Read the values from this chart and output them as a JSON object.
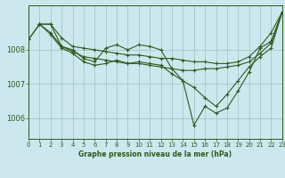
{
  "background_color": "#cce8ee",
  "grid_color": "#aacccc",
  "line_color": "#2d5a1b",
  "title": "Graphe pression niveau de la mer (hPa)",
  "xlim": [
    0,
    23
  ],
  "ylim": [
    1005.4,
    1009.3
  ],
  "yticks": [
    1006,
    1007,
    1008
  ],
  "xticks": [
    0,
    1,
    2,
    3,
    4,
    5,
    6,
    7,
    8,
    9,
    10,
    11,
    12,
    13,
    14,
    15,
    16,
    17,
    18,
    19,
    20,
    21,
    22,
    23
  ],
  "series": [
    {
      "x": [
        0,
        1,
        2,
        3,
        4,
        5,
        6,
        7,
        8,
        9,
        10,
        11,
        12,
        13,
        14,
        15,
        16,
        17,
        18,
        19,
        20,
        21,
        22,
        23
      ],
      "y": [
        1008.3,
        1008.75,
        1008.75,
        1008.35,
        1008.1,
        1008.05,
        1008.0,
        1007.95,
        1007.9,
        1007.85,
        1007.85,
        1007.8,
        1007.75,
        1007.75,
        1007.7,
        1007.65,
        1007.65,
        1007.6,
        1007.6,
        1007.65,
        1007.8,
        1008.1,
        1008.5,
        1009.1
      ]
    },
    {
      "x": [
        0,
        1,
        2,
        3,
        4,
        5,
        6,
        7,
        8,
        9,
        10,
        11,
        12,
        13,
        14,
        15,
        16,
        17,
        18,
        19,
        20,
        21,
        22,
        23
      ],
      "y": [
        1008.3,
        1008.75,
        1008.75,
        1008.1,
        1007.95,
        1007.8,
        1007.75,
        1007.7,
        1007.65,
        1007.6,
        1007.6,
        1007.55,
        1007.5,
        1007.45,
        1007.4,
        1007.4,
        1007.45,
        1007.45,
        1007.5,
        1007.55,
        1007.65,
        1007.9,
        1008.2,
        1009.1
      ]
    },
    {
      "x": [
        1,
        2,
        3,
        4,
        5,
        6,
        7,
        8,
        9,
        10,
        11,
        12,
        13,
        14,
        15,
        16,
        17,
        18,
        19,
        20,
        21,
        22,
        23
      ],
      "y": [
        1008.75,
        1008.5,
        1008.1,
        1008.0,
        1007.75,
        1007.65,
        1008.05,
        1008.15,
        1008.0,
        1008.15,
        1008.1,
        1008.0,
        1007.45,
        1007.1,
        1005.8,
        1006.35,
        1006.15,
        1006.3,
        1006.8,
        1007.35,
        1008.05,
        1008.25,
        1009.1
      ]
    },
    {
      "x": [
        1,
        2,
        3,
        4,
        5,
        6,
        7,
        8,
        9,
        10,
        11,
        12,
        13,
        14,
        15,
        16,
        17,
        18,
        19,
        20,
        21,
        22,
        23
      ],
      "y": [
        1008.75,
        1008.45,
        1008.05,
        1007.9,
        1007.65,
        1007.55,
        1007.6,
        1007.7,
        1007.6,
        1007.65,
        1007.6,
        1007.55,
        1007.3,
        1007.1,
        1006.9,
        1006.6,
        1006.35,
        1006.7,
        1007.1,
        1007.5,
        1007.8,
        1008.05,
        1009.1
      ]
    }
  ]
}
